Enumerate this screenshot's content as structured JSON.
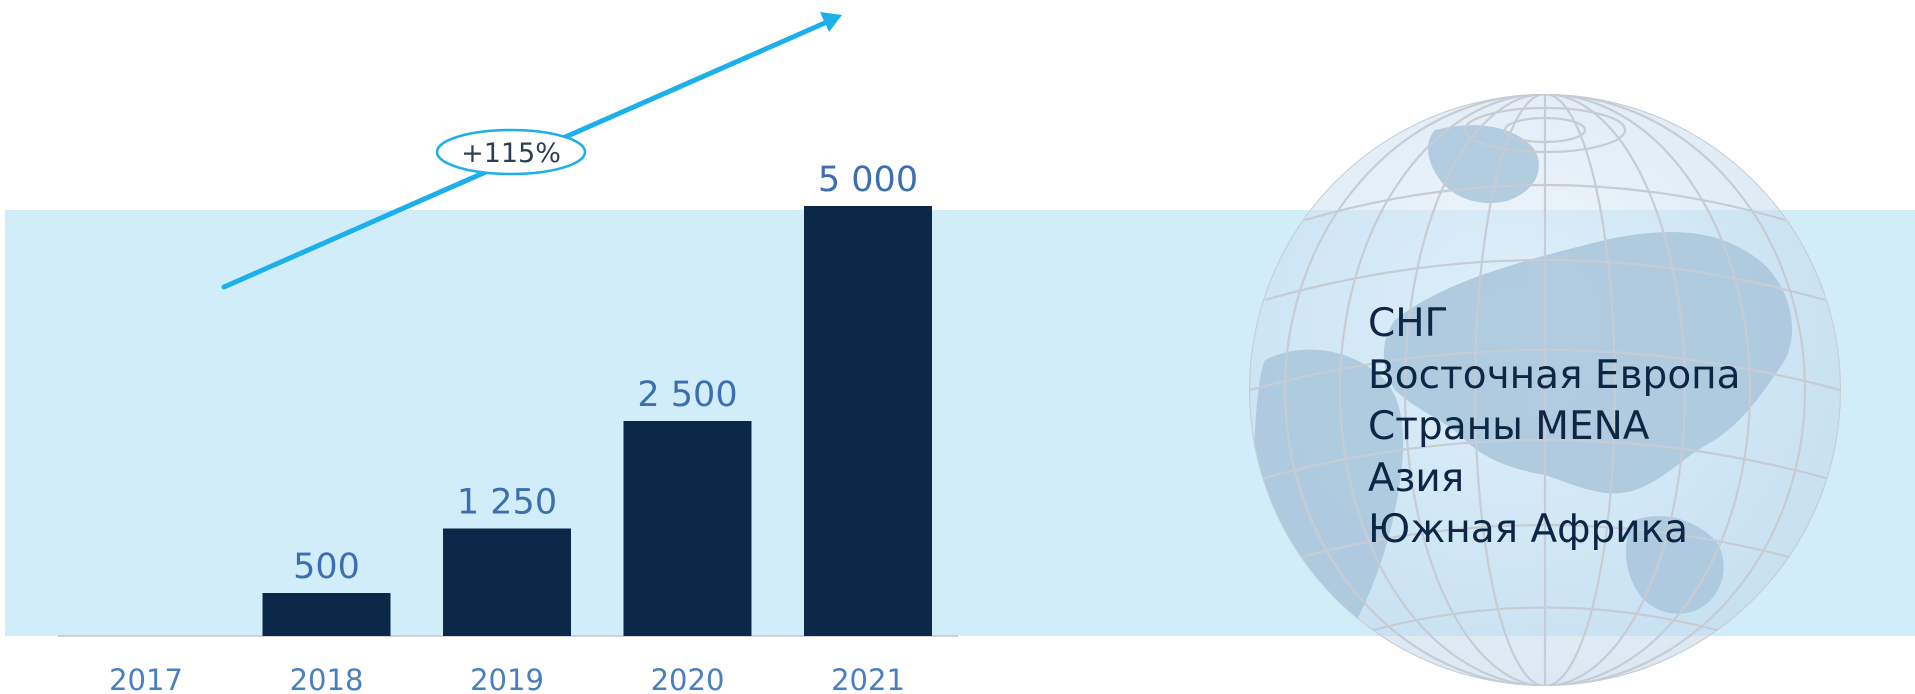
{
  "chart_data": {
    "type": "bar",
    "categories": [
      "2017",
      "2018",
      "2019",
      "2020",
      "2021"
    ],
    "values": [
      0,
      500,
      1250,
      2500,
      5000
    ],
    "value_labels": [
      "",
      "500",
      "1 250",
      "2 500",
      "5 000"
    ],
    "ylim": [
      0,
      5000
    ],
    "bar_color": "#0c2848",
    "label_color": "#3d6fb0",
    "axis_label_color": "#4a7fbf",
    "title": "",
    "xlabel": "",
    "ylabel": "",
    "grid": false,
    "growth_annotation": {
      "text": "+115%",
      "color": "#1bb0ea"
    }
  },
  "colors": {
    "band": "#d1edfa",
    "region_text": "#0c2646",
    "globe": "#a9c6dc"
  },
  "regions": [
    "СНГ",
    "Восточная Европа",
    "Страны MENA",
    "Азия",
    "Южная Африка"
  ],
  "globe_icon": "globe-icon"
}
